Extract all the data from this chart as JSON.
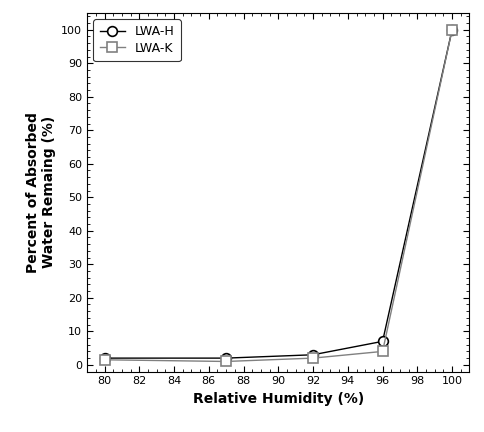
{
  "lwa_h_x": [
    80,
    87,
    92,
    96,
    100
  ],
  "lwa_h_y": [
    2.0,
    2.0,
    3.0,
    7.0,
    100.0
  ],
  "lwa_k_x": [
    80,
    87,
    92,
    96,
    100
  ],
  "lwa_k_y": [
    1.5,
    1.0,
    2.0,
    4.0,
    100.0
  ],
  "xlabel": "Relative Humidity (%)",
  "ylabel": "Percent of Absorbed\nWater Remaing (%)",
  "xlim": [
    79,
    101
  ],
  "ylim": [
    -2,
    105
  ],
  "xticks": [
    80,
    82,
    84,
    86,
    88,
    90,
    92,
    94,
    96,
    98,
    100
  ],
  "yticks": [
    0,
    10,
    20,
    30,
    40,
    50,
    60,
    70,
    80,
    90,
    100
  ],
  "line_color_h": "#000000",
  "line_color_k": "#808080",
  "marker_h": "o",
  "marker_k": "s",
  "legend_labels": [
    "LWA-H",
    "LWA-K"
  ],
  "background_color": "#ffffff",
  "marker_size": 7,
  "line_width": 1.0,
  "font_size_label": 10,
  "font_size_tick": 8,
  "font_size_legend": 9
}
